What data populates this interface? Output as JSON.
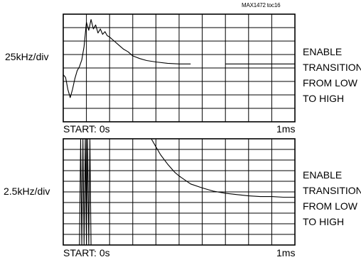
{
  "figure_tag": "MAX1472 toc16",
  "chart_data": [
    {
      "type": "line",
      "title": "",
      "scale_label": "25kHz/div",
      "annotation": [
        "ENABLE",
        "TRANSITION",
        "FROM LOW",
        "TO HIGH"
      ],
      "x_start_label": "START: 0s",
      "x_end_label": "1ms",
      "x_unit": "ms",
      "xlim": [
        0,
        1
      ],
      "ylim": [
        -4,
        4
      ],
      "y_unit": "div (25kHz/div)",
      "grid": true,
      "grid_divisions": {
        "x": 10,
        "y": 8
      },
      "series": [
        {
          "x": [
            0.0,
            0.01,
            0.02,
            0.03,
            0.04,
            0.05,
            0.06,
            0.07,
            0.08,
            0.09,
            0.1,
            0.11,
            0.12,
            0.13,
            0.14,
            0.15,
            0.16,
            0.17,
            0.18,
            0.19,
            0.2,
            0.22,
            0.24,
            0.26,
            0.28,
            0.3,
            0.33,
            0.36,
            0.4,
            0.45,
            0.5,
            0.55,
            0.58,
            0.6,
            0.65,
            0.7,
            0.75,
            0.8,
            0.85,
            0.9,
            0.95,
            1.0
          ],
          "values": [
            -0.5,
            -0.7,
            -1.6,
            -2.2,
            -1.6,
            -0.8,
            -0.2,
            0.1,
            0.6,
            1.6,
            3.4,
            2.8,
            3.6,
            2.9,
            3.2,
            2.6,
            2.9,
            2.5,
            2.7,
            2.4,
            2.3,
            2.0,
            1.7,
            1.4,
            1.2,
            0.9,
            0.7,
            0.55,
            0.45,
            0.35,
            0.3,
            0.3,
            null,
            null,
            null,
            0.3,
            0.3,
            0.3,
            0.3,
            0.3,
            0.3,
            0.3
          ]
        }
      ]
    },
    {
      "type": "line",
      "title": "",
      "scale_label": "2.5kHz/div",
      "annotation": [
        "ENABLE",
        "TRANSITION",
        "FROM LOW",
        "TO HIGH"
      ],
      "x_start_label": "START: 0s",
      "x_end_label": "1ms",
      "x_unit": "ms",
      "xlim": [
        0,
        1
      ],
      "ylim": [
        -4,
        4
      ],
      "y_unit": "div (2.5kHz/div)",
      "grid": true,
      "grid_divisions": {
        "x": 10,
        "y": 10
      },
      "series": [
        {
          "x": [
            0.07,
            0.075,
            0.08,
            0.085,
            0.09,
            0.095,
            0.1,
            0.105,
            0.11,
            0.115,
            0.12
          ],
          "values": [
            -4,
            4,
            -4,
            4,
            -4,
            4,
            -4,
            4,
            -4,
            4,
            -4
          ]
        },
        {
          "x": [
            0.38,
            0.4,
            0.42,
            0.45,
            0.48,
            0.5,
            0.55,
            0.6,
            0.65,
            0.7,
            0.75,
            0.8,
            0.85,
            0.9,
            0.95,
            1.0
          ],
          "values": [
            4.0,
            3.4,
            2.8,
            2.1,
            1.5,
            1.2,
            0.6,
            0.3,
            0.05,
            -0.1,
            -0.2,
            -0.3,
            -0.35,
            -0.35,
            -0.4,
            -0.4
          ]
        }
      ]
    }
  ]
}
